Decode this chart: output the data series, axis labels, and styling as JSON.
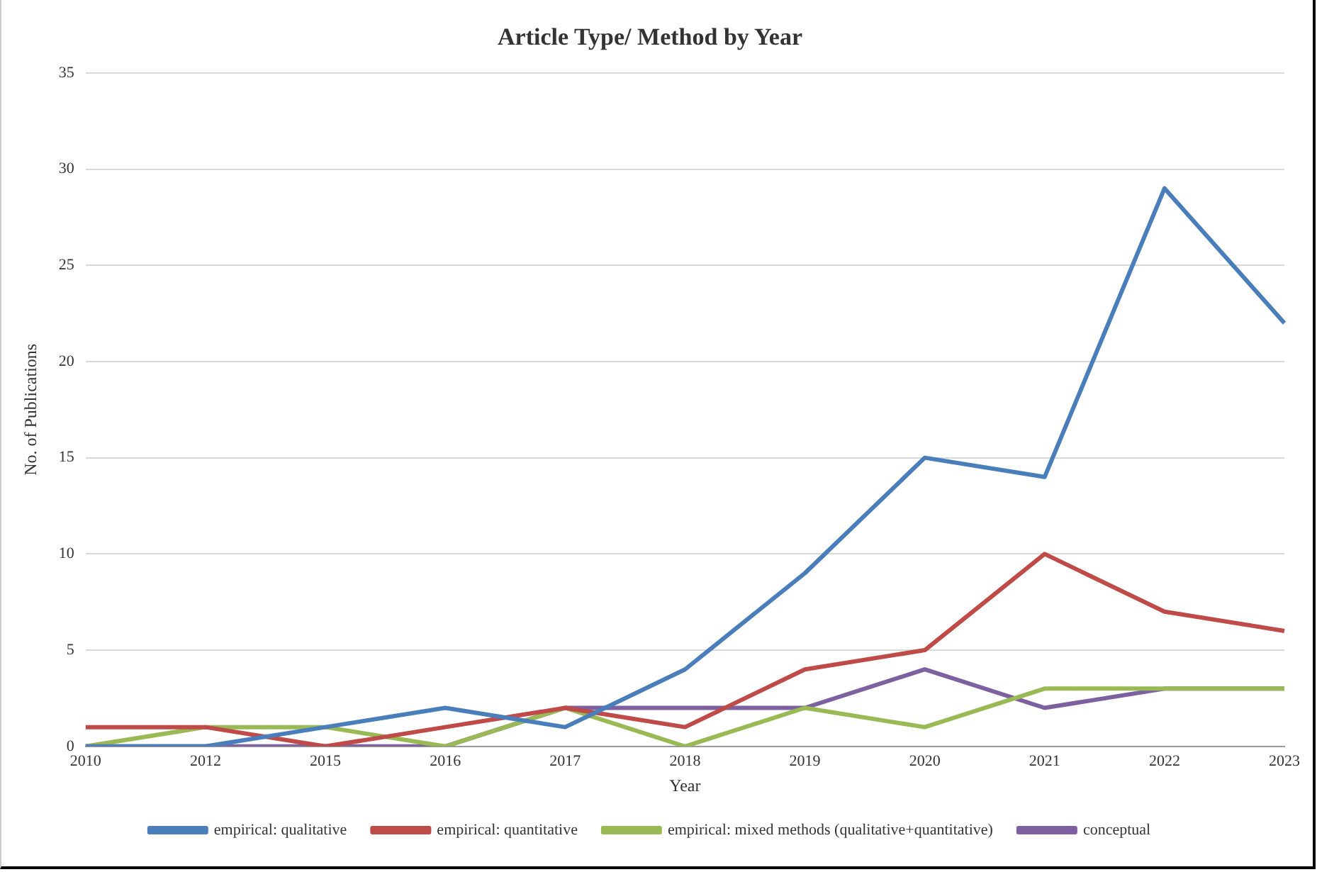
{
  "chart_data": {
    "type": "line",
    "title": "Article Type/ Method by Year",
    "xlabel": "Year",
    "ylabel": "No. of Publications",
    "categories": [
      "2010",
      "2012",
      "2015",
      "2016",
      "2017",
      "2018",
      "2019",
      "2020",
      "2021",
      "2022",
      "2023"
    ],
    "series": [
      {
        "name": "empirical: qualitative",
        "color": "#4a7ebb",
        "values": [
          0,
          0,
          1,
          2,
          1,
          4,
          9,
          15,
          14,
          29,
          22
        ]
      },
      {
        "name": "empirical: quantitative",
        "color": "#be4b48",
        "values": [
          1,
          1,
          0,
          1,
          2,
          1,
          4,
          5,
          10,
          7,
          6
        ]
      },
      {
        "name": "empirical: mixed methods (qualitative+quantitative)",
        "color": "#98b954",
        "values": [
          0,
          1,
          1,
          0,
          2,
          0,
          2,
          1,
          3,
          3,
          3
        ]
      },
      {
        "name": "conceptual",
        "color": "#7d60a0",
        "values": [
          0,
          0,
          0,
          0,
          2,
          2,
          2,
          4,
          2,
          3,
          3
        ]
      }
    ],
    "ylim": [
      0,
      35
    ],
    "yticks": [
      0,
      5,
      10,
      15,
      20,
      25,
      30,
      35
    ],
    "grid": "y",
    "legend": "bottom",
    "marker": "none",
    "line_style": "solid"
  }
}
